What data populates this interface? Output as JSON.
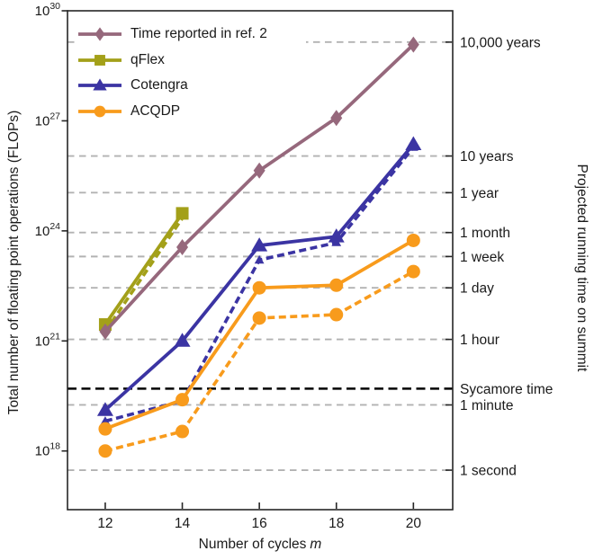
{
  "chart_data": {
    "type": "line",
    "title": "",
    "xlabel": {
      "prefix": "Number of cycles",
      "variable": "m"
    },
    "ylabel": "Total number of floating point operations (FLOPs)",
    "ylabel_right": "Projected running time on summit",
    "xlim": [
      11.02,
      21.02
    ],
    "ylim_log": [
      16.4,
      30
    ],
    "grid": "dashed-horizontal",
    "legend_position": "upper-left",
    "x_ticks": [
      "12",
      "14",
      "16",
      "18",
      "20"
    ],
    "x_tick_values": [
      12,
      14,
      16,
      18,
      20
    ],
    "y_ticks": [
      {
        "base": "10",
        "exp": "30",
        "value": 1e+30
      },
      {
        "base": "10",
        "exp": "27",
        "value": 1e+27
      },
      {
        "base": "10",
        "exp": "24",
        "value": 1e+24
      },
      {
        "base": "10",
        "exp": "21",
        "value": 1e+21
      },
      {
        "base": "10",
        "exp": "18",
        "value": 1e+18
      }
    ],
    "right_labels": [
      {
        "label": "10,000 years",
        "flops": 1.4e+29
      },
      {
        "label": "10 years",
        "flops": 1.1e+26
      },
      {
        "label": "1 year",
        "flops": 1.1e+25
      },
      {
        "label": "1 month",
        "flops": 9e+23
      },
      {
        "label": "1 week",
        "flops": 2e+23
      },
      {
        "label": "1 day",
        "flops": 2.8e+22
      },
      {
        "label": "1 hour",
        "flops": 1.1e+21
      },
      {
        "label": "1 minute",
        "flops": 1.8e+19
      },
      {
        "label": "1 second",
        "flops": 3e+17
      }
    ],
    "sycamore_line": {
      "label": "Sycamore time",
      "flops": 5e+19,
      "color": "#000000",
      "style": "dashed"
    },
    "colors": {
      "ref2": "#96687c",
      "qflex": "#a3a019",
      "cotengra": "#3b34a3",
      "acqdp": "#f89b1c",
      "gridline": "#b2b2b2",
      "spine": "#262626",
      "text": "#1a1a1a"
    },
    "series": [
      {
        "name": "Time reported in ref. 2",
        "key": "ref2",
        "color": "#96687c",
        "style": "solid",
        "marker": "diamond",
        "marker_scale": 1,
        "x": [
          12,
          14,
          16,
          18,
          20
        ],
        "values": [
          1.8e+21,
          3.6e+23,
          4.4e+25,
          1.2e+27,
          1.2e+29
        ]
      },
      {
        "name": "qFlex",
        "key": "qflex-solid",
        "color": "#a3a019",
        "style": "solid",
        "marker": "square",
        "marker_scale": 1,
        "x": [
          12,
          14
        ],
        "values": [
          2.8e+21,
          3e+24
        ]
      },
      {
        "name": "qFlex",
        "key": "qflex-dashed",
        "color": "#a3a019",
        "style": "dashed",
        "marker": "none",
        "marker_scale": 1,
        "x": [
          12,
          14
        ],
        "values": [
          1.8e+21,
          2.2e+24
        ]
      },
      {
        "name": "Cotengra",
        "key": "cotengra-solid",
        "color": "#3b34a3",
        "style": "solid",
        "marker": "triangle",
        "marker_scale": 1,
        "x": [
          12,
          14,
          16,
          18,
          20
        ],
        "values": [
          1.3e+19,
          1e+21,
          4e+23,
          7e+23,
          2.3e+26
        ]
      },
      {
        "name": "Cotengra",
        "key": "cotengra-dashed",
        "color": "#3b34a3",
        "style": "dashed",
        "marker": "triangle",
        "marker_scale": 0.6,
        "x": [
          12,
          14,
          16,
          18,
          20
        ],
        "values": [
          6.5e+18,
          2.3e+19,
          1.6e+23,
          4.8e+23,
          1.9e+26
        ]
      },
      {
        "name": "ACQDP",
        "key": "acqdp-solid",
        "color": "#f89b1c",
        "style": "solid",
        "marker": "circle",
        "marker_scale": 1,
        "x": [
          12,
          14,
          16,
          18,
          20
        ],
        "values": [
          4e+18,
          2.5e+19,
          2.8e+22,
          3.3e+22,
          5.5e+23
        ]
      },
      {
        "name": "ACQDP",
        "key": "acqdp-dashed",
        "color": "#f89b1c",
        "style": "dashed",
        "marker": "circle",
        "marker_scale": 1,
        "x": [
          12,
          14,
          16,
          18,
          20
        ],
        "values": [
          1e+18,
          3.4e+18,
          4.2e+21,
          5.2e+21,
          7.8e+22
        ]
      }
    ],
    "legend_series_indices": [
      0,
      1,
      3,
      5
    ],
    "draw_order": [
      2,
      1,
      0,
      4,
      3,
      6,
      5
    ]
  }
}
